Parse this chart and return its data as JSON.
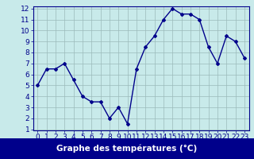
{
  "x": [
    0,
    1,
    2,
    3,
    4,
    5,
    6,
    7,
    8,
    9,
    10,
    11,
    12,
    13,
    14,
    15,
    16,
    17,
    18,
    19,
    20,
    21,
    22,
    23
  ],
  "y": [
    5.0,
    6.5,
    6.5,
    7.0,
    5.5,
    4.0,
    3.5,
    3.5,
    2.0,
    3.0,
    1.5,
    6.5,
    8.5,
    9.5,
    11.0,
    12.0,
    11.5,
    11.5,
    11.0,
    8.5,
    7.0,
    9.5,
    9.0,
    7.5
  ],
  "xlabel": "Graphe des températures (°C)",
  "ylim": [
    1,
    12
  ],
  "xlim": [
    -0.5,
    23.5
  ],
  "yticks": [
    1,
    2,
    3,
    4,
    5,
    6,
    7,
    8,
    9,
    10,
    11,
    12
  ],
  "xticks": [
    0,
    1,
    2,
    3,
    4,
    5,
    6,
    7,
    8,
    9,
    10,
    11,
    12,
    13,
    14,
    15,
    16,
    17,
    18,
    19,
    20,
    21,
    22,
    23
  ],
  "line_color": "#00008b",
  "marker": "D",
  "marker_size": 2.0,
  "line_width": 1.0,
  "bg_color": "#c8eaea",
  "grid_color": "#9bbaba",
  "xlabel_color": "#ffffff",
  "xlabel_bg": "#00008b",
  "xlabel_fontsize": 7.5,
  "tick_fontsize": 6.5
}
